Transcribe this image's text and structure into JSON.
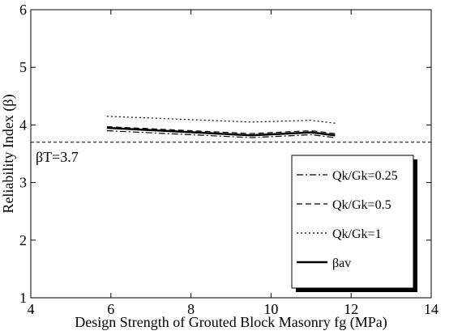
{
  "chart_data": {
    "type": "line",
    "x_label": "Design Strength of Grouted Block Masonry fg (MPa)",
    "y_label": "Reliability Index (β)",
    "x": [
      5.9,
      9.5,
      11.0,
      11.6
    ],
    "series": [
      {
        "name": "Qk/Gk=0.25",
        "color": "#000000",
        "dash": "dashdot",
        "values": [
          3.9,
          3.78,
          3.83,
          3.78
        ]
      },
      {
        "name": "Qk/Gk=0.5",
        "color": "#000000",
        "dash": "dashed",
        "values": [
          3.97,
          3.85,
          3.9,
          3.85
        ]
      },
      {
        "name": "Qk/Gk=1",
        "color": "#000000",
        "dash": "dotted",
        "values": [
          4.15,
          4.05,
          4.08,
          4.03
        ]
      },
      {
        "name": "βav",
        "color": "#000000",
        "dash": "solid",
        "values": [
          3.95,
          3.82,
          3.87,
          3.82
        ]
      }
    ],
    "reference_line": {
      "value": 3.7,
      "label": "βT=3.7"
    },
    "xlim": [
      4,
      14
    ],
    "xticks": [
      4,
      6,
      8,
      10,
      12,
      14
    ],
    "ylim": [
      1,
      6
    ],
    "yticks": [
      1,
      2,
      3,
      4,
      5,
      6
    ],
    "legend": "lower right"
  }
}
